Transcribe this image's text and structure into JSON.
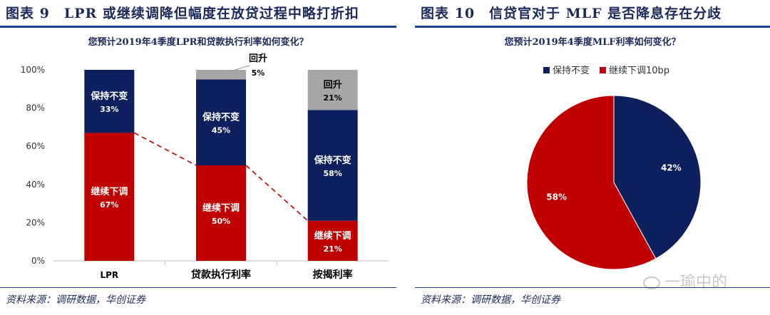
{
  "left": {
    "figure_title": "图表 9　LPR 或继续调降但幅度在放贷过程中略打折扣",
    "source": "资料来源：调研数据，华创证券"
  },
  "right": {
    "figure_title": "图表 10　信贷官对于 MLF 是否降息存在分歧",
    "source": "资料来源：调研数据，华创证券"
  },
  "watermark": "一瑜中的",
  "colors": {
    "red": "#c00000",
    "navy": "#0d1f5c",
    "gray": "#a6a6a6",
    "title": "#1b2a5a"
  },
  "chart_data": [
    {
      "type": "bar",
      "stacked": true,
      "title": "您预计2019年4季度LPR和贷款执行利率如何变化？",
      "categories": [
        "LPR",
        "贷款执行利率",
        "按揭利率"
      ],
      "series": [
        {
          "name": "继续下调",
          "label": "继续下调",
          "values": [
            67,
            50,
            21
          ],
          "color": "#c00000"
        },
        {
          "name": "保持不变",
          "label": "保持不变",
          "values": [
            33,
            45,
            58
          ],
          "color": "#0d1f5c"
        },
        {
          "name": "回升",
          "label": "回升",
          "values": [
            0,
            5,
            21
          ],
          "color": "#a6a6a6"
        }
      ],
      "ylim": [
        0,
        100
      ],
      "yticks": [
        "0%",
        "20%",
        "40%",
        "60%",
        "80%",
        "100%"
      ],
      "connector": "dashed line linking tops of 继续下调 segments",
      "xlabel": "",
      "ylabel": ""
    },
    {
      "type": "pie",
      "title": "您预计2019年4季度MLF利率如何变化？",
      "labels": [
        "保持不变",
        "继续下调10bp"
      ],
      "values": [
        42,
        58
      ],
      "colors": [
        "#0d1f5c",
        "#c00000"
      ],
      "legend": "top"
    }
  ]
}
